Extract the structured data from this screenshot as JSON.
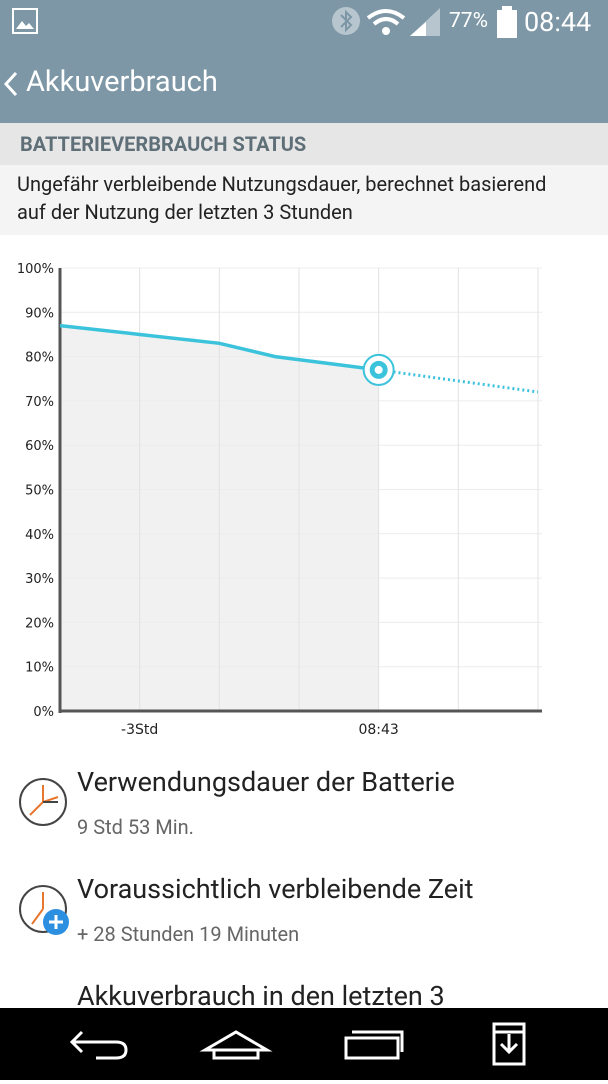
{
  "status_bar": {
    "battery": "77%",
    "time": "08:44"
  },
  "app_bar": {
    "title": "Akkuverbrauch"
  },
  "section": {
    "header": "BATTERIEVERBRAUCH STATUS",
    "description": "Ungefähr verbleibende Nutzungsdauer, berechnet basierend auf der Nutzung der letzten 3 Stunden"
  },
  "chart_data": {
    "type": "line",
    "series": [
      {
        "color": "#3cc3dc",
        "style": "solid",
        "fill": "#f1f1f1",
        "x": [
          -4,
          -3,
          -2,
          -1.3,
          0
        ],
        "values": [
          87,
          85,
          83,
          80,
          77
        ]
      },
      {
        "color": "#3cc3dc",
        "style": "dotted",
        "x": [
          0,
          2
        ],
        "values": [
          77,
          72
        ]
      }
    ],
    "xlim": [
      -4,
      2
    ],
    "xticks": [
      {
        "value": -4,
        "label": null
      },
      {
        "value": -3,
        "label": "-3Std"
      },
      {
        "value": -2,
        "label": null
      },
      {
        "value": -1,
        "label": null
      },
      {
        "value": 0,
        "label": "08:43"
      },
      {
        "value": 1,
        "label": null
      },
      {
        "value": 2,
        "label": null
      }
    ],
    "ylim": [
      0,
      100
    ],
    "yticks": [
      {
        "value": 0,
        "label": "0%"
      },
      {
        "value": 10,
        "label": "10%"
      },
      {
        "value": 20,
        "label": "20%"
      },
      {
        "value": 30,
        "label": "30%"
      },
      {
        "value": 40,
        "label": "40%"
      },
      {
        "value": 50,
        "label": "50%"
      },
      {
        "value": 60,
        "label": "60%"
      },
      {
        "value": 70,
        "label": "70%"
      },
      {
        "value": 80,
        "label": "80%"
      },
      {
        "value": 90,
        "label": "90%"
      },
      {
        "value": 100,
        "label": "100%"
      }
    ],
    "grid": true
  },
  "list": [
    {
      "title": "Verwendungsdauer der Batterie",
      "subtitle": "9 Std 53 Min."
    },
    {
      "title": "Voraussichtlich verbleibende Zeit",
      "subtitle": "+ 28 Stunden 19 Minuten"
    },
    {
      "title": "Akkuverbrauch in den letzten 3"
    }
  ]
}
